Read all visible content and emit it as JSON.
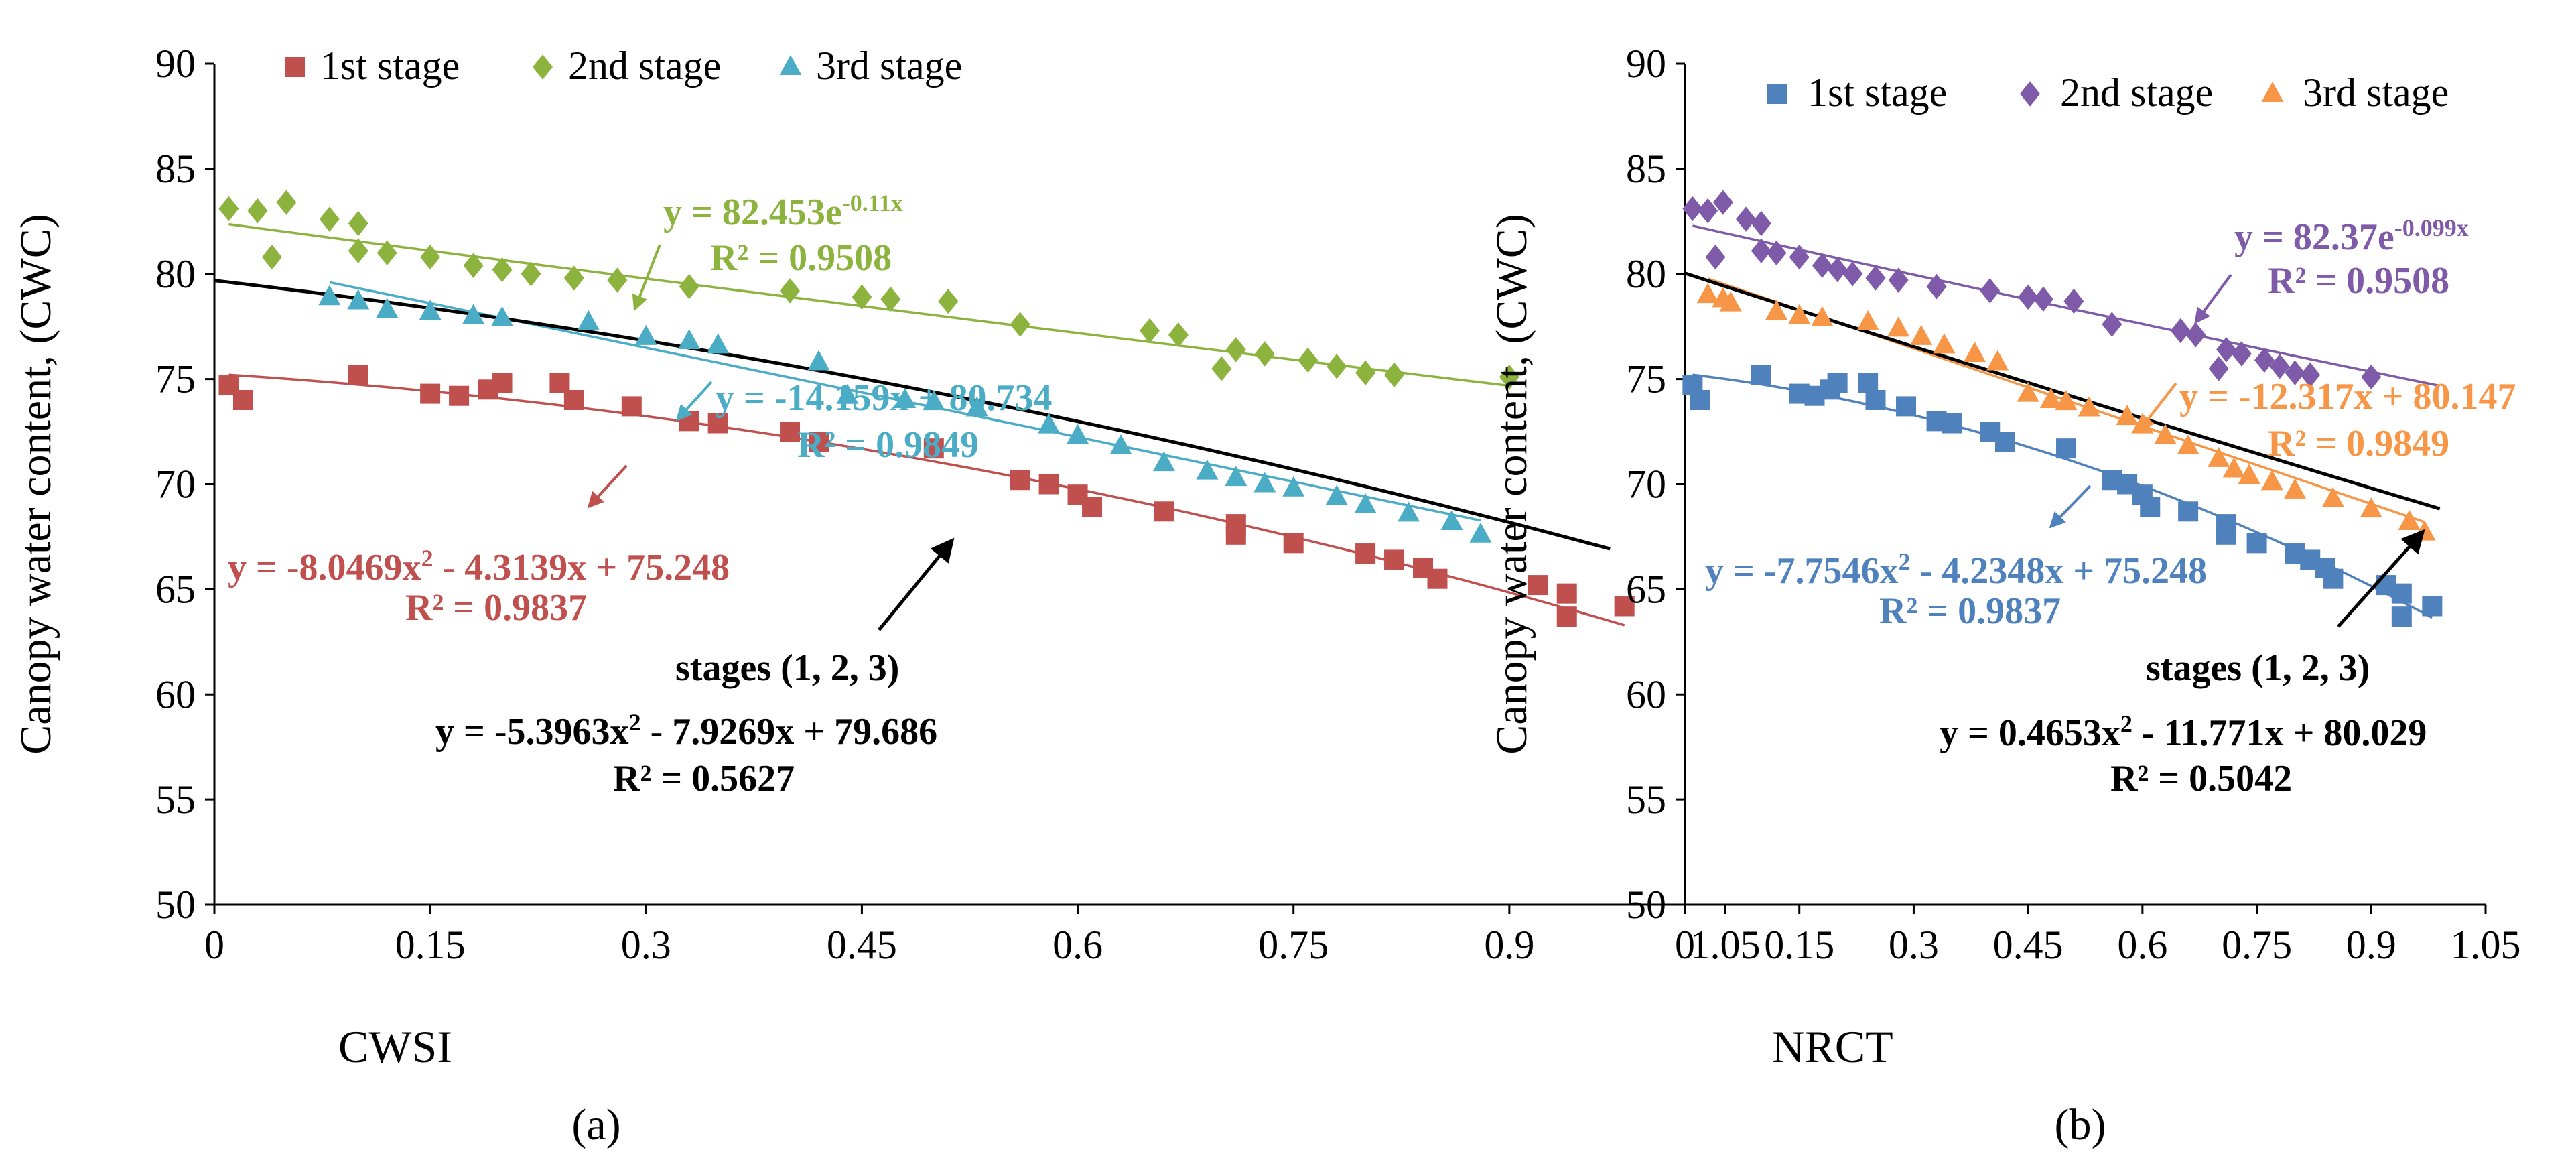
{
  "colors": {
    "stage1_a": "#c0504d",
    "stage2_a": "#8db33f",
    "stage3_a": "#4bacc6",
    "stage1_b": "#4f81bd",
    "stage2_b": "#7f5aa8",
    "stage3_b": "#f79646",
    "overall": "#000000",
    "axis": "#000000"
  },
  "chart_data": [
    {
      "type": "scatter",
      "panel_label": "(a)",
      "xlabel": "CWSI",
      "ylabel": "Canopy water content, (CWC)",
      "xlim": [
        0,
        1.05
      ],
      "ylim": [
        50,
        90
      ],
      "x_ticks": [
        "0",
        "0.15",
        "0.3",
        "0.45",
        "0.6",
        "0.75",
        "0.9",
        "1.05"
      ],
      "y_ticks": [
        "50",
        "55",
        "60",
        "65",
        "70",
        "75",
        "80",
        "85",
        "90"
      ],
      "legend": [
        "1st stage",
        "2nd stage",
        "3rd stage"
      ],
      "series": [
        {
          "name": "1st stage",
          "marker": "square",
          "color_key": "stage1_a",
          "points": [
            [
              0.01,
              74.7
            ],
            [
              0.02,
              74.0
            ],
            [
              0.1,
              75.2
            ],
            [
              0.15,
              74.3
            ],
            [
              0.17,
              74.2
            ],
            [
              0.19,
              74.5
            ],
            [
              0.2,
              74.8
            ],
            [
              0.24,
              74.8
            ],
            [
              0.25,
              74.0
            ],
            [
              0.29,
              73.7
            ],
            [
              0.33,
              73.0
            ],
            [
              0.35,
              72.9
            ],
            [
              0.4,
              72.5
            ],
            [
              0.42,
              72.0
            ],
            [
              0.5,
              71.7
            ],
            [
              0.56,
              70.2
            ],
            [
              0.58,
              70.0
            ],
            [
              0.6,
              69.5
            ],
            [
              0.61,
              68.9
            ],
            [
              0.66,
              68.7
            ],
            [
              0.71,
              68.1
            ],
            [
              0.71,
              67.6
            ],
            [
              0.75,
              67.2
            ],
            [
              0.8,
              66.7
            ],
            [
              0.82,
              66.4
            ],
            [
              0.84,
              66.0
            ],
            [
              0.85,
              65.5
            ],
            [
              0.92,
              65.2
            ],
            [
              0.94,
              64.8
            ],
            [
              0.94,
              63.7
            ],
            [
              0.98,
              64.2
            ]
          ]
        },
        {
          "name": "2nd stage",
          "marker": "diamond",
          "color_key": "stage2_a",
          "points": [
            [
              0.01,
              83.1
            ],
            [
              0.03,
              83.0
            ],
            [
              0.04,
              80.8
            ],
            [
              0.05,
              83.4
            ],
            [
              0.08,
              82.6
            ],
            [
              0.1,
              82.4
            ],
            [
              0.1,
              81.1
            ],
            [
              0.12,
              81.0
            ],
            [
              0.15,
              80.8
            ],
            [
              0.18,
              80.4
            ],
            [
              0.2,
              80.2
            ],
            [
              0.22,
              80.0
            ],
            [
              0.25,
              79.8
            ],
            [
              0.28,
              79.7
            ],
            [
              0.33,
              79.4
            ],
            [
              0.4,
              79.2
            ],
            [
              0.45,
              78.9
            ],
            [
              0.47,
              78.8
            ],
            [
              0.51,
              78.7
            ],
            [
              0.56,
              77.6
            ],
            [
              0.65,
              77.3
            ],
            [
              0.67,
              77.1
            ],
            [
              0.7,
              75.5
            ],
            [
              0.71,
              76.4
            ],
            [
              0.73,
              76.2
            ],
            [
              0.76,
              75.9
            ],
            [
              0.78,
              75.6
            ],
            [
              0.8,
              75.3
            ],
            [
              0.82,
              75.2
            ],
            [
              0.9,
              75.1
            ]
          ]
        },
        {
          "name": "3rd stage",
          "marker": "triangle",
          "color_key": "stage3_a",
          "points": [
            [
              0.08,
              78.9
            ],
            [
              0.1,
              78.7
            ],
            [
              0.12,
              78.3
            ],
            [
              0.15,
              78.2
            ],
            [
              0.18,
              78.0
            ],
            [
              0.2,
              77.9
            ],
            [
              0.26,
              77.7
            ],
            [
              0.3,
              77.0
            ],
            [
              0.33,
              76.8
            ],
            [
              0.35,
              76.6
            ],
            [
              0.42,
              75.8
            ],
            [
              0.44,
              74.2
            ],
            [
              0.48,
              74.0
            ],
            [
              0.5,
              73.9
            ],
            [
              0.53,
              73.6
            ],
            [
              0.58,
              72.8
            ],
            [
              0.6,
              72.3
            ],
            [
              0.63,
              71.8
            ],
            [
              0.66,
              71.0
            ],
            [
              0.69,
              70.6
            ],
            [
              0.71,
              70.3
            ],
            [
              0.73,
              70.0
            ],
            [
              0.75,
              69.8
            ],
            [
              0.78,
              69.4
            ],
            [
              0.8,
              69.0
            ],
            [
              0.83,
              68.6
            ],
            [
              0.86,
              68.2
            ],
            [
              0.88,
              67.6
            ]
          ]
        }
      ],
      "trendlines": [
        {
          "series": "1st stage",
          "model": "poly2",
          "coef": [
            -8.0469,
            -4.3139,
            75.248
          ],
          "x_range": [
            0.01,
            0.98
          ],
          "color_key": "stage1_a"
        },
        {
          "series": "2nd stage",
          "model": "exp",
          "coef": [
            82.453,
            -0.11
          ],
          "x_range": [
            0.01,
            0.9
          ],
          "color_key": "stage2_a"
        },
        {
          "series": "3rd stage",
          "model": "linear",
          "coef": [
            -14.159,
            80.734
          ],
          "x_range": [
            0.08,
            0.88
          ],
          "color_key": "stage3_a"
        },
        {
          "series": "stages (1, 2, 3)",
          "model": "poly2",
          "coef": [
            -5.3963,
            -7.9269,
            79.686
          ],
          "x_range": [
            0.0,
            0.97
          ],
          "color_key": "overall"
        }
      ],
      "annotations": {
        "eq_stage2": "y = 82.453e",
        "eq_stage2_exp": "-0.11x",
        "r2_stage2": "R² = 0.9508",
        "eq_stage3": "y = -14.159x + 80.734",
        "r2_stage3": "R² = 0.9849",
        "eq_stage1_a": "y = -8.0469x",
        "eq_stage1_sup": "2",
        "eq_stage1_b": " - 4.3139x + 75.248",
        "r2_stage1": "R² = 0.9837",
        "overall_label": "stages (1, 2, 3)",
        "eq_overall_a": "y = -5.3963x",
        "eq_overall_sup": "2",
        "eq_overall_b": " - 7.9269x + 79.686",
        "r2_overall": "R² = 0.5627"
      }
    },
    {
      "type": "scatter",
      "panel_label": "(b)",
      "xlabel": "NRCT",
      "ylabel": "Canopy water content, (CWC)",
      "xlim": [
        0,
        1.05
      ],
      "ylim": [
        50,
        90
      ],
      "x_ticks": [
        "0",
        "0.15",
        "0.3",
        "0.45",
        "0.6",
        "0.75",
        "0.9",
        "1.05"
      ],
      "y_ticks": [
        "50",
        "55",
        "60",
        "65",
        "70",
        "75",
        "80",
        "85",
        "90"
      ],
      "legend": [
        "1st stage",
        "2nd stage",
        "3rd stage"
      ],
      "series": [
        {
          "name": "1st stage",
          "marker": "square",
          "color_key": "stage1_b",
          "points": [
            [
              0.01,
              74.7
            ],
            [
              0.02,
              74.0
            ],
            [
              0.1,
              75.2
            ],
            [
              0.15,
              74.3
            ],
            [
              0.17,
              74.2
            ],
            [
              0.19,
              74.5
            ],
            [
              0.2,
              74.8
            ],
            [
              0.24,
              74.8
            ],
            [
              0.25,
              74.0
            ],
            [
              0.29,
              73.7
            ],
            [
              0.33,
              73.0
            ],
            [
              0.35,
              72.9
            ],
            [
              0.4,
              72.5
            ],
            [
              0.42,
              72.0
            ],
            [
              0.5,
              71.7
            ],
            [
              0.56,
              70.2
            ],
            [
              0.58,
              70.0
            ],
            [
              0.6,
              69.5
            ],
            [
              0.61,
              68.9
            ],
            [
              0.66,
              68.7
            ],
            [
              0.71,
              68.1
            ],
            [
              0.71,
              67.6
            ],
            [
              0.75,
              67.2
            ],
            [
              0.8,
              66.7
            ],
            [
              0.82,
              66.4
            ],
            [
              0.84,
              66.0
            ],
            [
              0.85,
              65.5
            ],
            [
              0.92,
              65.2
            ],
            [
              0.94,
              64.8
            ],
            [
              0.94,
              63.7
            ],
            [
              0.98,
              64.2
            ]
          ]
        },
        {
          "name": "2nd stage",
          "marker": "diamond",
          "color_key": "stage2_b",
          "points": [
            [
              0.01,
              83.1
            ],
            [
              0.03,
              83.0
            ],
            [
              0.04,
              80.8
            ],
            [
              0.05,
              83.4
            ],
            [
              0.08,
              82.6
            ],
            [
              0.1,
              82.4
            ],
            [
              0.1,
              81.1
            ],
            [
              0.12,
              81.0
            ],
            [
              0.15,
              80.8
            ],
            [
              0.18,
              80.4
            ],
            [
              0.2,
              80.2
            ],
            [
              0.22,
              80.0
            ],
            [
              0.25,
              79.8
            ],
            [
              0.28,
              79.7
            ],
            [
              0.33,
              79.4
            ],
            [
              0.4,
              79.2
            ],
            [
              0.45,
              78.9
            ],
            [
              0.47,
              78.8
            ],
            [
              0.51,
              78.7
            ],
            [
              0.56,
              77.6
            ],
            [
              0.65,
              77.3
            ],
            [
              0.67,
              77.1
            ],
            [
              0.7,
              75.5
            ],
            [
              0.71,
              76.4
            ],
            [
              0.73,
              76.2
            ],
            [
              0.76,
              75.9
            ],
            [
              0.78,
              75.6
            ],
            [
              0.8,
              75.3
            ],
            [
              0.82,
              75.2
            ],
            [
              0.9,
              75.1
            ]
          ]
        },
        {
          "name": "3rd stage",
          "marker": "triangle",
          "color_key": "stage3_b",
          "points": [
            [
              0.03,
              79.0
            ],
            [
              0.05,
              78.8
            ],
            [
              0.06,
              78.6
            ],
            [
              0.12,
              78.2
            ],
            [
              0.15,
              78.0
            ],
            [
              0.18,
              77.9
            ],
            [
              0.24,
              77.7
            ],
            [
              0.28,
              77.4
            ],
            [
              0.31,
              77.0
            ],
            [
              0.34,
              76.6
            ],
            [
              0.38,
              76.2
            ],
            [
              0.41,
              75.8
            ],
            [
              0.45,
              74.3
            ],
            [
              0.48,
              74.0
            ],
            [
              0.5,
              73.9
            ],
            [
              0.53,
              73.6
            ],
            [
              0.58,
              73.2
            ],
            [
              0.6,
              72.8
            ],
            [
              0.63,
              72.3
            ],
            [
              0.66,
              71.8
            ],
            [
              0.7,
              71.2
            ],
            [
              0.72,
              70.7
            ],
            [
              0.74,
              70.4
            ],
            [
              0.77,
              70.1
            ],
            [
              0.8,
              69.7
            ],
            [
              0.85,
              69.3
            ],
            [
              0.9,
              68.8
            ],
            [
              0.95,
              68.2
            ],
            [
              0.97,
              67.7
            ]
          ]
        }
      ],
      "trendlines": [
        {
          "series": "1st stage",
          "model": "poly2",
          "coef": [
            -7.7546,
            -4.2348,
            75.248
          ],
          "x_range": [
            0.01,
            0.98
          ],
          "color_key": "stage1_b"
        },
        {
          "series": "2nd stage",
          "model": "exp",
          "coef": [
            82.37,
            -0.099
          ],
          "x_range": [
            0.01,
            0.99
          ],
          "color_key": "stage2_b"
        },
        {
          "series": "3rd stage",
          "model": "linear",
          "coef": [
            -12.317,
            80.147
          ],
          "x_range": [
            0.03,
            0.97
          ],
          "color_key": "stage3_b"
        },
        {
          "series": "stages (1, 2, 3)",
          "model": "poly2",
          "coef": [
            0.4653,
            -11.771,
            80.029
          ],
          "x_range": [
            0.0,
            0.99
          ],
          "color_key": "overall"
        }
      ],
      "annotations": {
        "eq_stage2": "y = 82.37e",
        "eq_stage2_exp": "-0.099x",
        "r2_stage2": "R² = 0.9508",
        "eq_stage3": "y = -12.317x + 80.147",
        "r2_stage3": "R² = 0.9849",
        "eq_stage1_a": "y = -7.7546x",
        "eq_stage1_sup": "2",
        "eq_stage1_b": " - 4.2348x + 75.248",
        "r2_stage1": "R² = 0.9837",
        "overall_label": "stages (1, 2, 3)",
        "eq_overall_a": "y = 0.4653x",
        "eq_overall_sup": "2",
        "eq_overall_b": " - 11.771x + 80.029",
        "r2_overall": "R² = 0.5042"
      }
    }
  ]
}
